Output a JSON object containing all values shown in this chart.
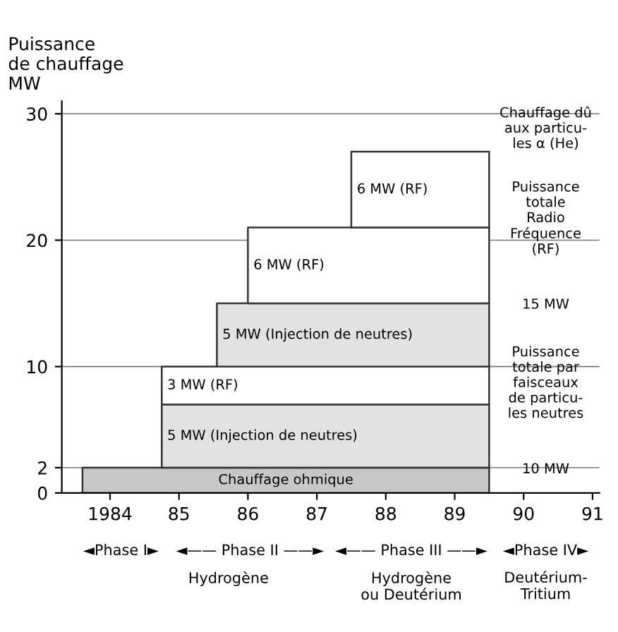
{
  "chart_data": {
    "type": "area",
    "stacked": true,
    "ylabel": "Puissance\nde chauffage\nMW",
    "xlim": [
      1983.3,
      1991.1
    ],
    "xticks": [
      {
        "value": 1984,
        "label": "1984"
      },
      {
        "value": 1985,
        "label": "85"
      },
      {
        "value": 1986,
        "label": "86"
      },
      {
        "value": 1987,
        "label": "87"
      },
      {
        "value": 1988,
        "label": "88"
      },
      {
        "value": 1989,
        "label": "89"
      },
      {
        "value": 1990,
        "label": "90"
      },
      {
        "value": 1991,
        "label": "91"
      }
    ],
    "ylim": [
      0,
      31
    ],
    "yticks": [
      0,
      2,
      10,
      20,
      30
    ],
    "grid": "y",
    "series": [
      {
        "name": "Chauffage ohmique",
        "color": "#c8c8c8",
        "x": [
          1983.6,
          1989.5
        ],
        "values": [
          2,
          2
        ]
      },
      {
        "color": "#e2e2e2",
        "x": [
          1984.75,
          1989.5
        ],
        "values": [
          5,
          5
        ],
        "value_labels": [
          "5 MW (Injection de neutres)",
          null
        ]
      },
      {
        "color": "#ffffff",
        "x": [
          1984.75,
          1989.5
        ],
        "values": [
          3,
          3
        ],
        "value_labels": [
          "3 MW (RF)",
          null
        ]
      },
      {
        "color": "#e2e2e2",
        "x": [
          1985.55,
          1989.5
        ],
        "values": [
          5,
          5
        ],
        "value_labels": [
          "5 MW (Injection de neutres)",
          null
        ]
      },
      {
        "color": "#ffffff",
        "x": [
          1986.0,
          1989.5
        ],
        "values": [
          6,
          6
        ],
        "value_labels": [
          "6 MW (RF)",
          null
        ]
      },
      {
        "color": "#ffffff",
        "x": [
          1987.5,
          1989.5
        ],
        "values": [
          6,
          6
        ],
        "value_labels": [
          "6 MW (RF)",
          null
        ]
      }
    ],
    "annotations": [
      "Chauffage dû\naux particu-\nles α (He)",
      "Puissance\ntotale\nRadio\nFréquence\n(RF)",
      "15 MW",
      "Puissance\ntotale par\nfaisceaux\nde particu-\nles neutres",
      "10 MW",
      "◄Phase I►",
      "◄—— Phase II ——►",
      "◄—— Phase III ——►",
      "◄Phase IV►",
      "Hydrogène",
      "Hydrogène\nou Deutérium",
      "Deutérium-\nTritium"
    ]
  }
}
